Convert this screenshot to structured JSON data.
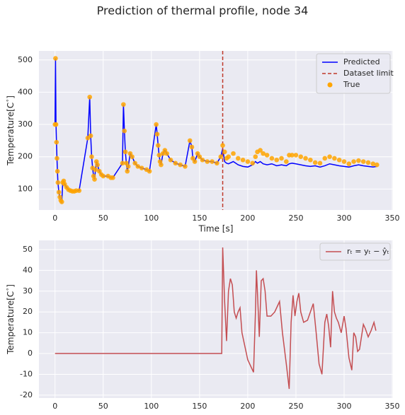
{
  "title": "Prediction of thermal profile, node 34",
  "chart_data": [
    {
      "type": "line",
      "xlabel": "Time [s]",
      "ylabel": "Temperature[C$^\\circ$]",
      "xlim": [
        -16.7,
        350.7
      ],
      "xticks": [
        0,
        50,
        100,
        150,
        200,
        250,
        300,
        350
      ],
      "ylim": [
        35,
        528
      ],
      "yticks": [
        100,
        200,
        300,
        400,
        500
      ],
      "grid": true,
      "legend": "upper right",
      "x": [
        0,
        0.5,
        1,
        1.5,
        2,
        2.5,
        3,
        4,
        5,
        6,
        7,
        8,
        9,
        10,
        12,
        14,
        16,
        18,
        20,
        22,
        25,
        34,
        36,
        37,
        38,
        39,
        40,
        41,
        42,
        43,
        44,
        46,
        48,
        50,
        55,
        58,
        60,
        70,
        71,
        72,
        73,
        74,
        75,
        76,
        78,
        80,
        83,
        86,
        90,
        95,
        98,
        105,
        106,
        107,
        108,
        109,
        110,
        112,
        114,
        116,
        120,
        125,
        130,
        135,
        140,
        142,
        143,
        145,
        148,
        150,
        153,
        158,
        163,
        168,
        172,
        174,
        176,
        178,
        180,
        185,
        190,
        195,
        200,
        205,
        208,
        210,
        213,
        216,
        220,
        225,
        230,
        235,
        240,
        243,
        246,
        250,
        255,
        260,
        265,
        270,
        275,
        280,
        285,
        290,
        295,
        300,
        305,
        310,
        315,
        320,
        325,
        330,
        334
      ],
      "series": [
        {
          "name": "Predicted",
          "style": "line",
          "color": "#0000ff",
          "values": [
            300,
            505,
            300,
            245,
            195,
            155,
            120,
            90,
            75,
            65,
            60,
            120,
            125,
            115,
            105,
            98,
            95,
            93,
            93,
            95,
            95,
            258,
            385,
            265,
            200,
            165,
            140,
            130,
            160,
            185,
            175,
            155,
            145,
            140,
            140,
            135,
            135,
            180,
            362,
            280,
            215,
            180,
            155,
            170,
            210,
            200,
            180,
            170,
            165,
            160,
            155,
            300,
            270,
            235,
            205,
            185,
            175,
            210,
            220,
            210,
            190,
            180,
            175,
            170,
            250,
            230,
            195,
            185,
            210,
            200,
            190,
            185,
            185,
            180,
            200,
            225,
            185,
            180,
            178,
            185,
            175,
            170,
            168,
            175,
            185,
            180,
            185,
            178,
            175,
            178,
            172,
            175,
            172,
            178,
            180,
            178,
            175,
            172,
            170,
            172,
            168,
            172,
            178,
            175,
            172,
            170,
            168,
            172,
            175,
            172,
            170,
            168,
            170
          ]
        },
        {
          "name": "True",
          "style": "scatter",
          "color": "#ffa500",
          "values": [
            300,
            505,
            300,
            245,
            195,
            155,
            120,
            90,
            75,
            65,
            60,
            120,
            125,
            115,
            105,
            98,
            95,
            93,
            93,
            95,
            95,
            258,
            385,
            265,
            200,
            165,
            140,
            130,
            160,
            185,
            175,
            155,
            145,
            140,
            140,
            135,
            135,
            180,
            362,
            280,
            215,
            180,
            155,
            170,
            210,
            200,
            180,
            170,
            165,
            160,
            155,
            300,
            270,
            235,
            205,
            185,
            175,
            210,
            220,
            210,
            190,
            180,
            175,
            170,
            250,
            230,
            195,
            185,
            210,
            200,
            190,
            185,
            185,
            180,
            200,
            235,
            215,
            195,
            200,
            210,
            195,
            190,
            185,
            180,
            200,
            215,
            220,
            210,
            205,
            195,
            190,
            195,
            185,
            205,
            205,
            205,
            200,
            195,
            190,
            182,
            180,
            195,
            200,
            195,
            190,
            185,
            178,
            185,
            188,
            185,
            182,
            178,
            175
          ]
        }
      ],
      "vline": {
        "name": "Dataset limit",
        "x": 174,
        "color": "#c0392b",
        "style": "dashed"
      }
    },
    {
      "type": "line",
      "ylabel": "Temperature[C$^\\circ$]",
      "xlim": [
        -16.7,
        350.7
      ],
      "xticks": [
        0,
        50,
        100,
        150,
        200,
        250,
        300,
        350
      ],
      "ylim": [
        -21.4,
        54.4
      ],
      "yticks": [
        -20,
        -10,
        0,
        10,
        20,
        30,
        40,
        50
      ],
      "grid": true,
      "legend": "upper right",
      "x": [
        0,
        173,
        174,
        176,
        178,
        180,
        182,
        184,
        186,
        188,
        190,
        192,
        194,
        200,
        206,
        208,
        209,
        210,
        212,
        214,
        216,
        218,
        220,
        224,
        228,
        231,
        233,
        236,
        240,
        243,
        245,
        247,
        249,
        251,
        253,
        255,
        258,
        262,
        265,
        268,
        271,
        274,
        277,
        280,
        282,
        284,
        286,
        288,
        290,
        292,
        294,
        297,
        300,
        302,
        305,
        308,
        310,
        312,
        314,
        316,
        318,
        320,
        322,
        325,
        328,
        331,
        333
      ],
      "series": [
        {
          "name": "rₜ = yₜ − ŷₜ",
          "style": "line",
          "color": "#c44e52",
          "values": [
            0,
            0,
            51,
            25,
            6,
            30,
            36,
            33,
            20,
            17,
            20,
            22,
            10,
            -3,
            -9,
            20,
            40,
            30,
            8,
            35,
            36,
            30,
            18,
            18,
            20,
            23,
            25,
            10,
            -5,
            -17,
            15,
            28,
            18,
            25,
            29,
            20,
            15,
            16,
            20,
            24,
            10,
            -5,
            -10,
            15,
            19,
            13,
            3,
            30,
            20,
            17,
            15,
            10,
            18,
            12,
            -2,
            -8,
            10,
            8,
            1,
            2,
            8,
            14,
            12,
            8,
            11,
            15,
            11
          ]
        }
      ]
    }
  ]
}
